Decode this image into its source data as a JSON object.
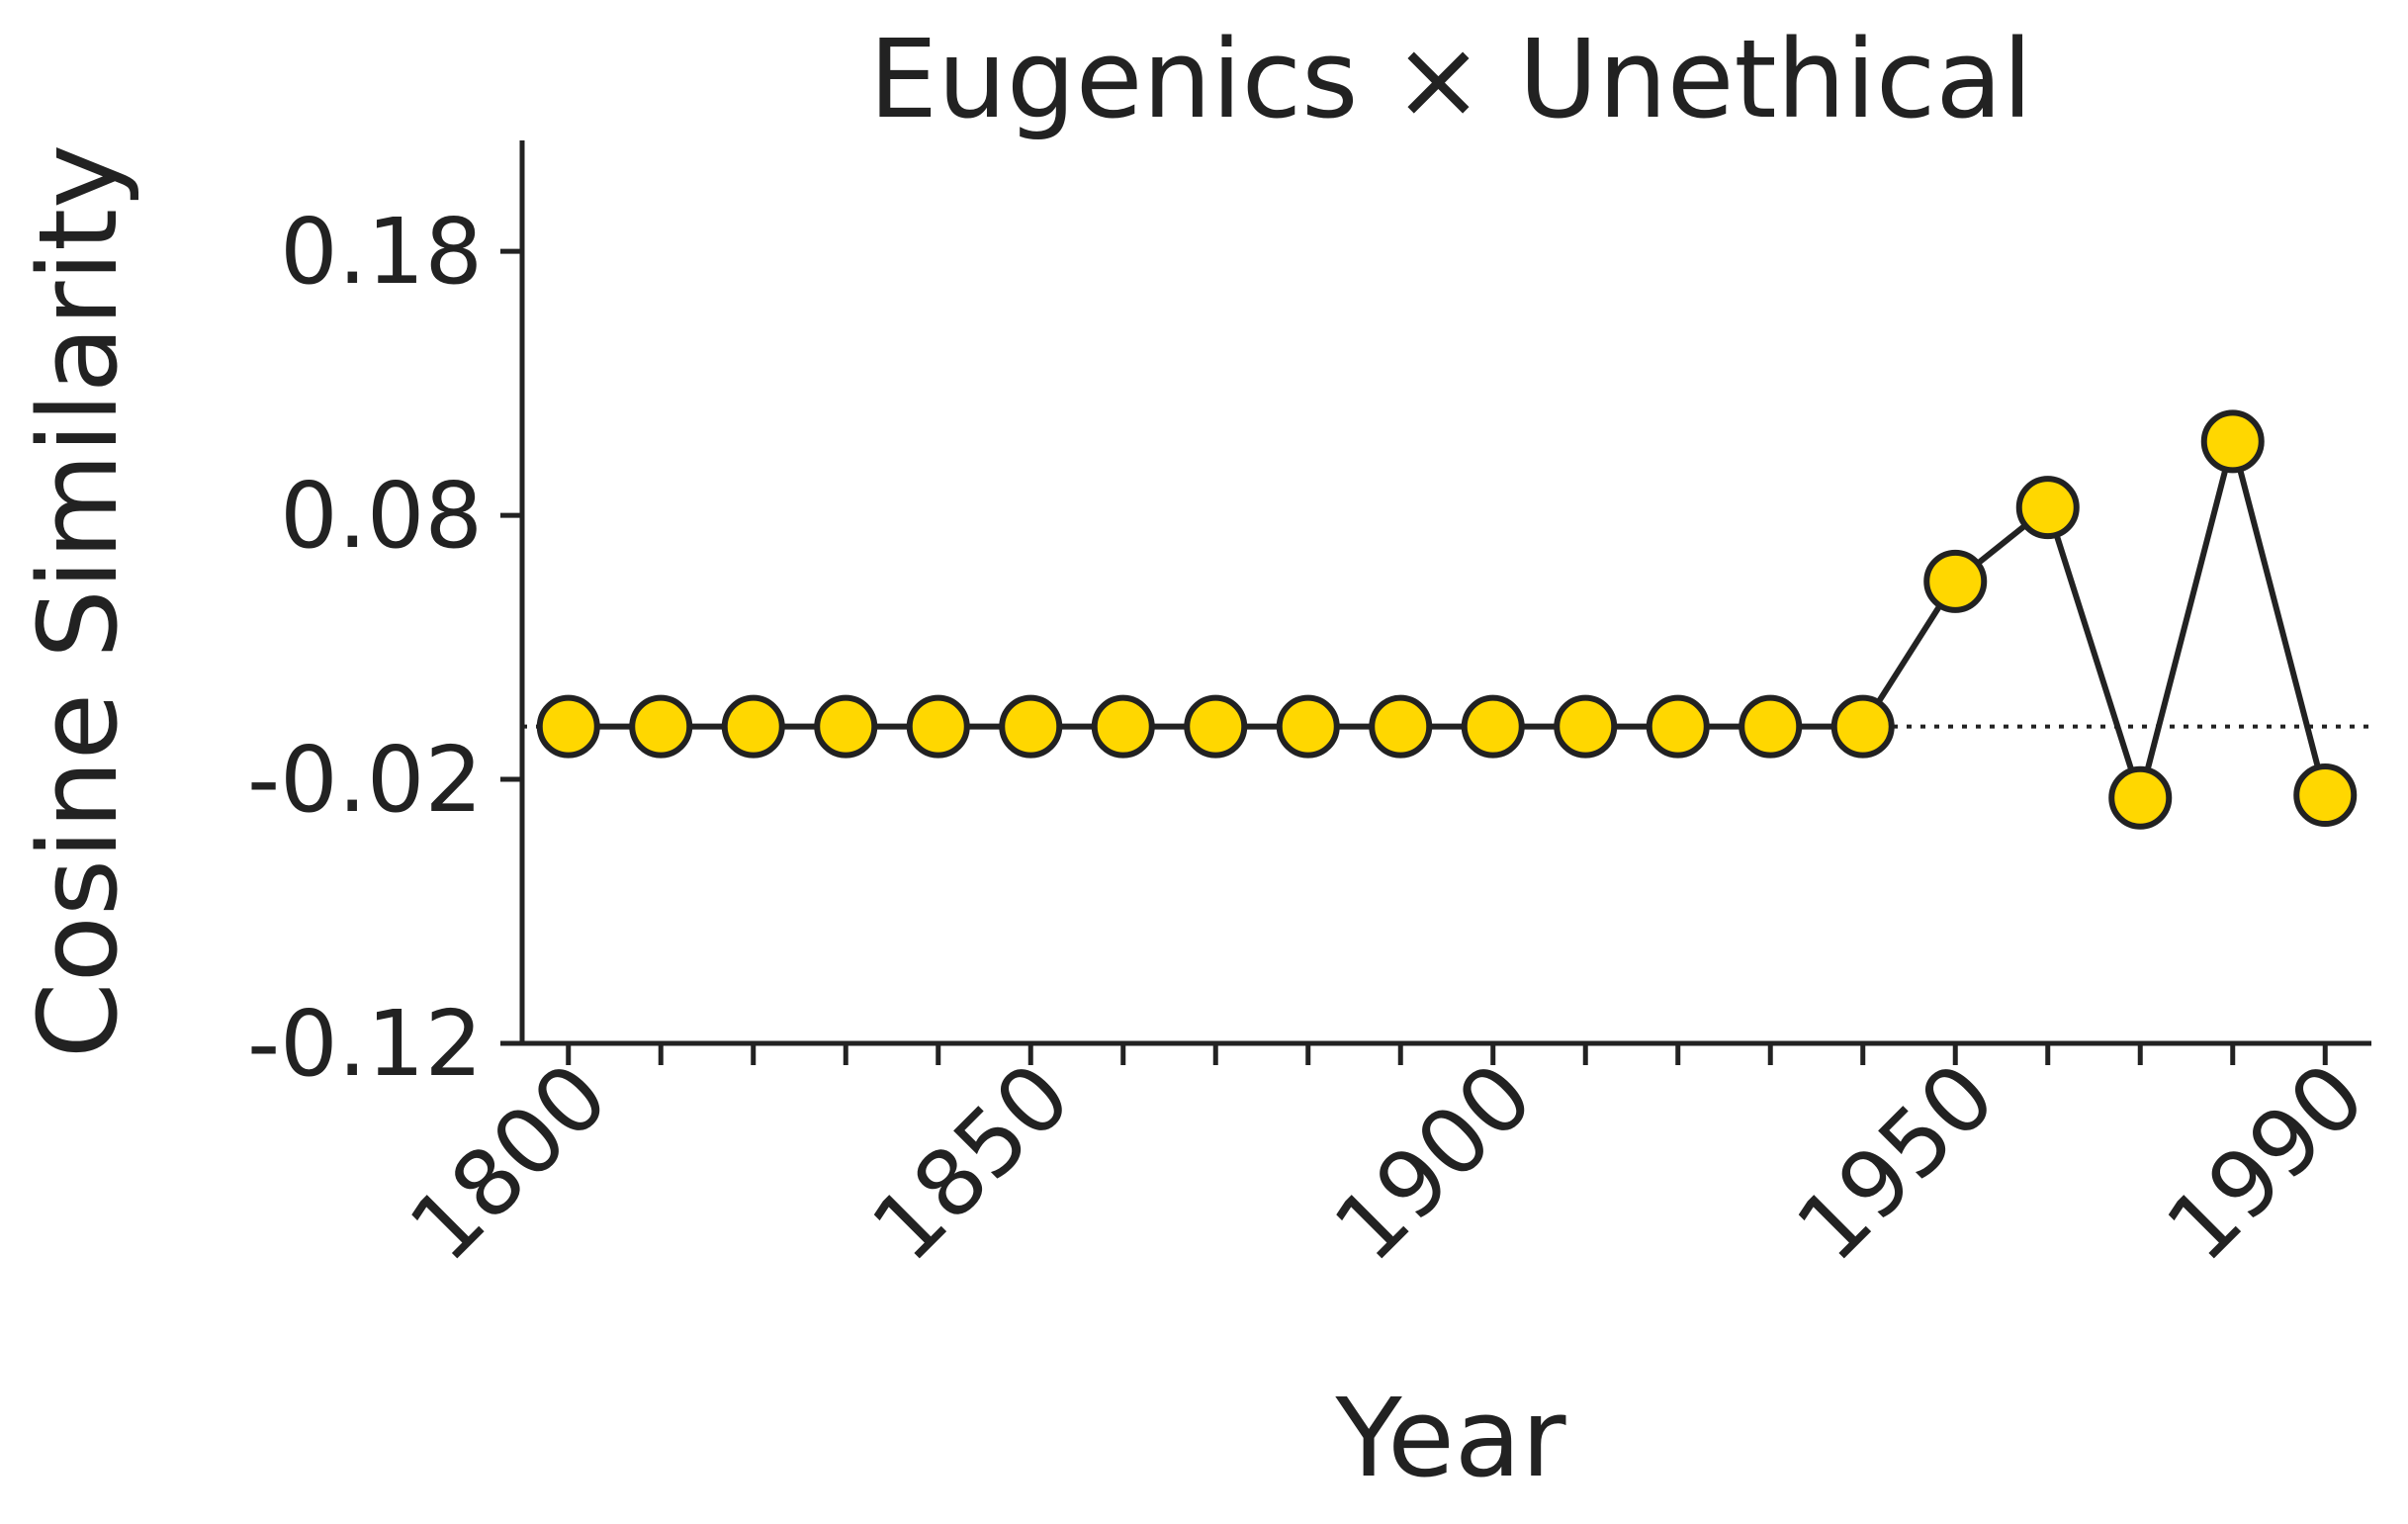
{
  "chart_data": {
    "type": "line",
    "title": "Eugenics × Unethical",
    "xlabel": "Year",
    "ylabel": "Cosine Similarity",
    "x": [
      1800,
      1810,
      1820,
      1830,
      1840,
      1850,
      1860,
      1870,
      1880,
      1890,
      1900,
      1910,
      1920,
      1930,
      1940,
      1950,
      1960,
      1970,
      1980,
      1990
    ],
    "series": [
      {
        "values": [
          0.0,
          0.0,
          0.0,
          0.0,
          0.0,
          0.0,
          0.0,
          0.0,
          0.0,
          0.0,
          0.0,
          0.0,
          0.0,
          0.0,
          0.0,
          0.055,
          0.083,
          -0.027,
          0.108,
          -0.026
        ]
      }
    ],
    "x_ticks": [
      1800,
      1810,
      1820,
      1830,
      1840,
      1850,
      1860,
      1870,
      1880,
      1890,
      1900,
      1910,
      1920,
      1930,
      1940,
      1950,
      1960,
      1970,
      1980,
      1990
    ],
    "x_tick_labels": [
      "1800",
      "1850",
      "1900",
      "1950",
      "1990"
    ],
    "y_ticks": [
      0.18,
      0.08,
      -0.02,
      -0.12
    ],
    "y_tick_labels": [
      "0.18",
      "0.08",
      "-0.02",
      "-0.12"
    ],
    "xlim": [
      1795,
      1995
    ],
    "ylim": [
      -0.12,
      0.222
    ],
    "reference_line": 0.0,
    "grid": false,
    "colors": {
      "marker_fill": "#FFD700",
      "marker_edge": "#222222",
      "line": "#222222"
    }
  }
}
